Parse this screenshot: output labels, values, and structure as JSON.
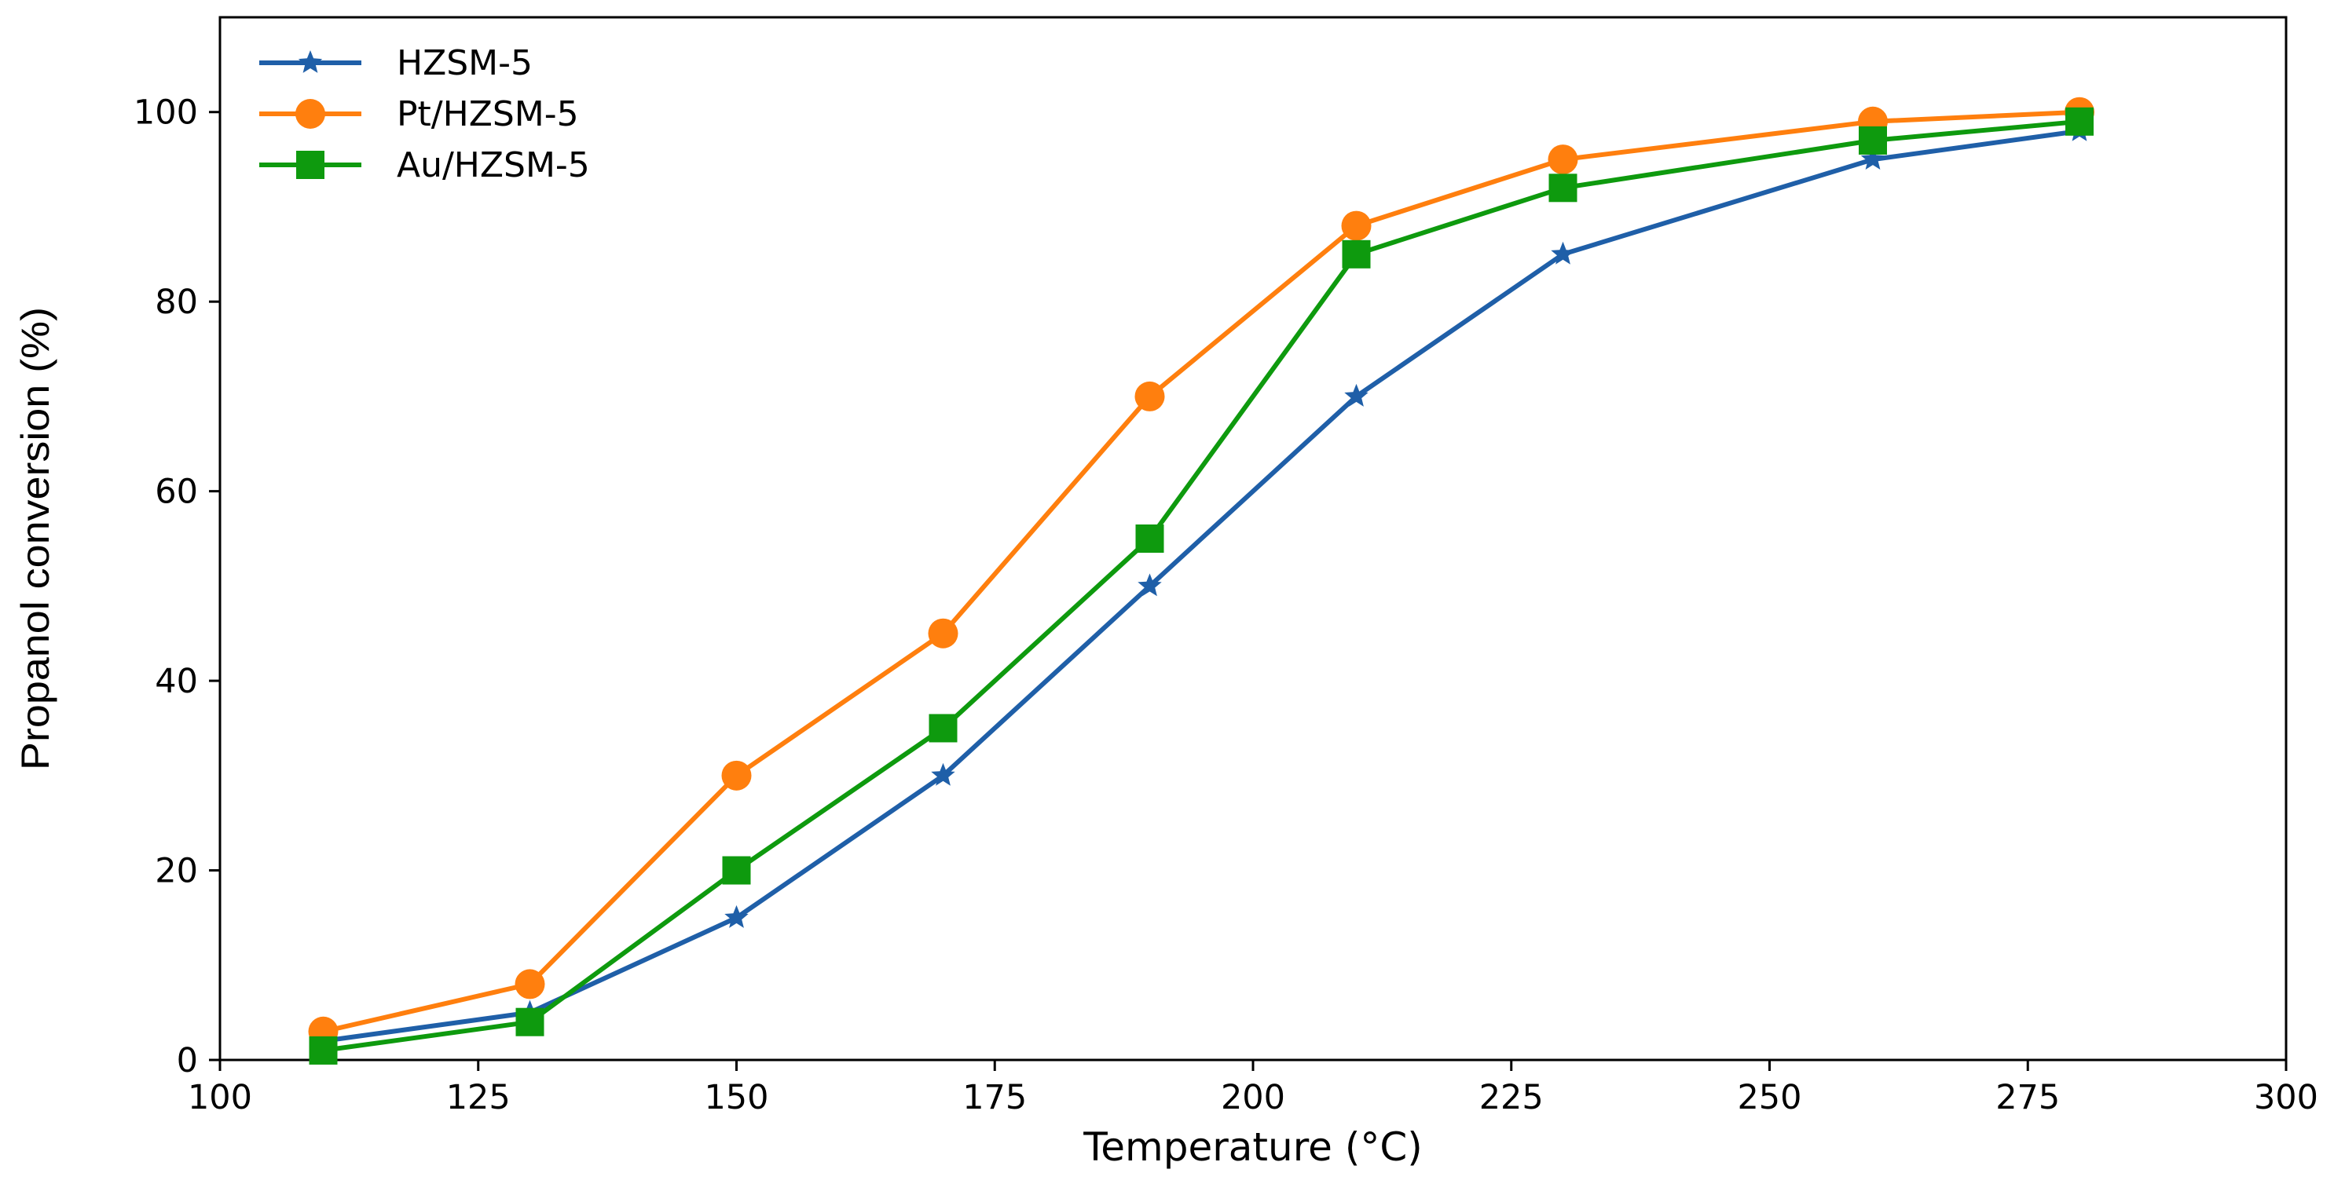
{
  "chart_data": {
    "type": "line",
    "title": "",
    "xlabel": "Temperature (°C)",
    "ylabel": "Propanol conversion (%)",
    "xlim": [
      100,
      300
    ],
    "ylim": [
      0,
      110
    ],
    "xticks": [
      100,
      125,
      150,
      175,
      200,
      225,
      250,
      275,
      300
    ],
    "yticks": [
      0,
      20,
      40,
      60,
      80,
      100
    ],
    "grid": false,
    "legend_position": "top-left",
    "x": [
      110,
      130,
      150,
      170,
      190,
      210,
      230,
      260,
      280
    ],
    "series": [
      {
        "name": "HZSM-5",
        "color": "#1f5fa8",
        "marker": "star",
        "values": [
          2,
          5,
          15,
          30,
          50,
          70,
          85,
          95,
          98
        ]
      },
      {
        "name": "Pt/HZSM-5",
        "color": "#ff7f0e",
        "marker": "circle",
        "values": [
          3,
          8,
          30,
          45,
          70,
          88,
          95,
          99,
          100
        ]
      },
      {
        "name": "Au/HZSM-5",
        "color": "#0e9a0e",
        "marker": "square",
        "values": [
          1,
          4,
          20,
          35,
          55,
          85,
          92,
          97,
          99
        ]
      }
    ]
  }
}
